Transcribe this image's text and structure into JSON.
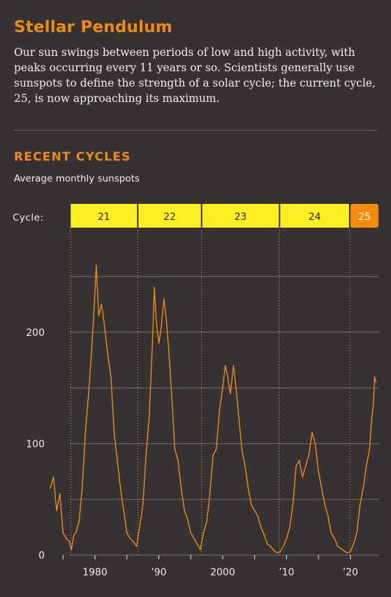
{
  "header": {
    "title": "Stellar Pendulum",
    "description": "Our sun swings between periods of low and high activity, with peaks occurring every 11 years or so. Scientists generally use sunspots to define the strength of a solar cycle; the current cycle, 25, is now approaching its maximum."
  },
  "section": {
    "title": "RECENT CYCLES",
    "subtitle": "Average monthly sunspots"
  },
  "colors": {
    "background": "#363233",
    "line": "#f08a12",
    "cycle_band": "#ffee22",
    "current_cycle": "#f58a0c",
    "grid": "#77715f",
    "text": "#f1efe8"
  },
  "chart_data": {
    "type": "line",
    "cycle_label": "Cycle:",
    "cycles": [
      {
        "name": "21",
        "start": 1976.2,
        "end": 1986.7
      },
      {
        "name": "22",
        "start": 1986.7,
        "end": 1996.7
      },
      {
        "name": "23",
        "start": 1996.7,
        "end": 2008.9
      },
      {
        "name": "24",
        "start": 2008.9,
        "end": 2019.9
      },
      {
        "name": "25",
        "start": 2019.9,
        "end": 2024.5,
        "current": true
      }
    ],
    "xlim": [
      1973,
      2024.5
    ],
    "ylim": [
      0,
      260
    ],
    "yticks": [
      0,
      100,
      200
    ],
    "ygrid": [
      0,
      50,
      100,
      150,
      200,
      250
    ],
    "xticks": [
      {
        "value": 1980,
        "label": "1980"
      },
      {
        "value": 1990,
        "label": "’90"
      },
      {
        "value": 2000,
        "label": "2000"
      },
      {
        "value": 2010,
        "label": "’10"
      },
      {
        "value": 2020,
        "label": "’20"
      }
    ],
    "series": [
      {
        "values": [
          [
            1973.0,
            60
          ],
          [
            1973.5,
            70
          ],
          [
            1974.0,
            40
          ],
          [
            1974.5,
            55
          ],
          [
            1975.0,
            20
          ],
          [
            1975.5,
            15
          ],
          [
            1976.0,
            12
          ],
          [
            1976.3,
            5
          ],
          [
            1976.7,
            18
          ],
          [
            1977.0,
            20
          ],
          [
            1977.5,
            30
          ],
          [
            1978.0,
            60
          ],
          [
            1978.5,
            110
          ],
          [
            1979.0,
            145
          ],
          [
            1979.5,
            185
          ],
          [
            1979.9,
            225
          ],
          [
            1980.2,
            260
          ],
          [
            1980.6,
            215
          ],
          [
            1981.0,
            225
          ],
          [
            1981.4,
            210
          ],
          [
            1982.0,
            180
          ],
          [
            1982.5,
            160
          ],
          [
            1983.0,
            110
          ],
          [
            1983.5,
            85
          ],
          [
            1984.0,
            60
          ],
          [
            1984.5,
            40
          ],
          [
            1985.0,
            20
          ],
          [
            1985.5,
            15
          ],
          [
            1986.0,
            12
          ],
          [
            1986.5,
            8
          ],
          [
            1987.0,
            25
          ],
          [
            1987.5,
            45
          ],
          [
            1988.0,
            90
          ],
          [
            1988.5,
            125
          ],
          [
            1989.0,
            190
          ],
          [
            1989.3,
            240
          ],
          [
            1989.6,
            210
          ],
          [
            1990.0,
            190
          ],
          [
            1990.4,
            205
          ],
          [
            1990.8,
            230
          ],
          [
            1991.2,
            210
          ],
          [
            1991.6,
            180
          ],
          [
            1992.0,
            145
          ],
          [
            1992.5,
            95
          ],
          [
            1993.0,
            85
          ],
          [
            1993.5,
            60
          ],
          [
            1994.0,
            40
          ],
          [
            1994.5,
            32
          ],
          [
            1995.0,
            20
          ],
          [
            1995.5,
            15
          ],
          [
            1996.0,
            10
          ],
          [
            1996.5,
            5
          ],
          [
            1997.0,
            20
          ],
          [
            1997.5,
            30
          ],
          [
            1998.0,
            55
          ],
          [
            1998.5,
            90
          ],
          [
            1999.0,
            95
          ],
          [
            1999.5,
            130
          ],
          [
            2000.0,
            150
          ],
          [
            2000.4,
            170
          ],
          [
            2000.8,
            160
          ],
          [
            2001.2,
            145
          ],
          [
            2001.7,
            170
          ],
          [
            2002.1,
            150
          ],
          [
            2002.5,
            125
          ],
          [
            2003.0,
            95
          ],
          [
            2003.5,
            80
          ],
          [
            2004.0,
            60
          ],
          [
            2004.5,
            45
          ],
          [
            2005.0,
            40
          ],
          [
            2005.5,
            35
          ],
          [
            2006.0,
            25
          ],
          [
            2006.5,
            18
          ],
          [
            2007.0,
            10
          ],
          [
            2007.5,
            8
          ],
          [
            2008.0,
            4
          ],
          [
            2008.5,
            2
          ],
          [
            2009.0,
            3
          ],
          [
            2009.5,
            8
          ],
          [
            2010.0,
            15
          ],
          [
            2010.5,
            25
          ],
          [
            2011.0,
            45
          ],
          [
            2011.5,
            80
          ],
          [
            2012.0,
            85
          ],
          [
            2012.5,
            70
          ],
          [
            2013.0,
            80
          ],
          [
            2013.5,
            90
          ],
          [
            2014.0,
            110
          ],
          [
            2014.5,
            100
          ],
          [
            2015.0,
            75
          ],
          [
            2015.5,
            60
          ],
          [
            2016.0,
            45
          ],
          [
            2016.5,
            35
          ],
          [
            2017.0,
            20
          ],
          [
            2017.5,
            15
          ],
          [
            2018.0,
            8
          ],
          [
            2018.5,
            6
          ],
          [
            2019.0,
            4
          ],
          [
            2019.5,
            2
          ],
          [
            2020.0,
            3
          ],
          [
            2020.5,
            10
          ],
          [
            2021.0,
            20
          ],
          [
            2021.5,
            45
          ],
          [
            2022.0,
            60
          ],
          [
            2022.5,
            80
          ],
          [
            2023.0,
            95
          ],
          [
            2023.3,
            120
          ],
          [
            2023.6,
            135
          ],
          [
            2023.8,
            160
          ],
          [
            2024.0,
            155
          ]
        ]
      }
    ]
  }
}
